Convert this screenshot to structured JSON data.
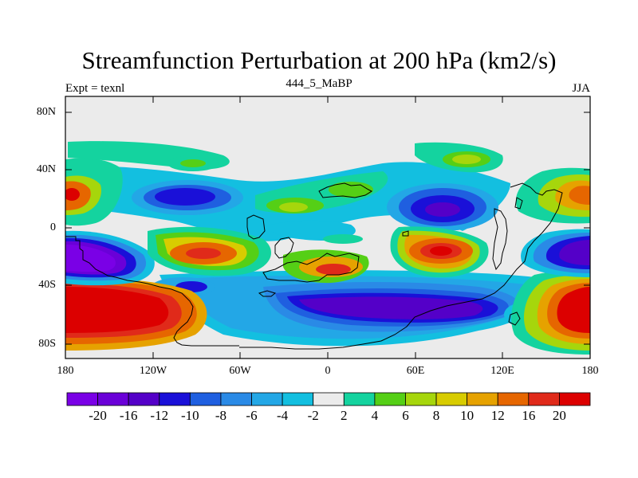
{
  "title": "Streamfunction Perturbation at 200 hPa (km2/s)",
  "subtitle_left": "Expt = texnl",
  "subtitle_center": "444_5_MaBP",
  "subtitle_right": "JJA",
  "lat_labels": [
    "80N",
    "40N",
    "0",
    "40S",
    "80S"
  ],
  "lon_labels": [
    "180",
    "120W",
    "60W",
    "0",
    "60E",
    "120E",
    "180"
  ],
  "colorbar": {
    "colors": [
      "#7a00e6",
      "#6a00d8",
      "#5400c8",
      "#1a10d8",
      "#1f5fe0",
      "#2a8ae6",
      "#23a7e6",
      "#13bfe0",
      "#ebebeb",
      "#14d39f",
      "#55cf16",
      "#a6d60c",
      "#d8cc00",
      "#e6a200",
      "#e66600",
      "#e02a1a",
      "#dc0000"
    ],
    "labels": [
      "-20",
      "-16",
      "-12",
      "-10",
      "-8",
      "-6",
      "-4",
      "-2",
      "2",
      "4",
      "6",
      "8",
      "10",
      "12",
      "16",
      "20"
    ]
  }
}
